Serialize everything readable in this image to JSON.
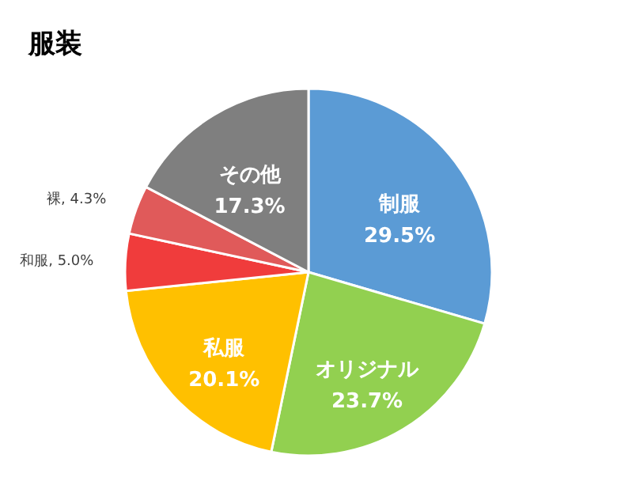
{
  "chart_data": {
    "type": "pie",
    "title": "服装",
    "categories": [
      "制服",
      "オリジナル",
      "私服",
      "和服",
      "裸",
      "その他"
    ],
    "values": [
      29.5,
      23.7,
      20.1,
      5.0,
      4.3,
      17.3
    ],
    "value_labels": [
      "29.5%",
      "23.7%",
      "20.1%",
      "5.0%",
      "4.3%",
      "17.3%"
    ],
    "colors": [
      "#5b9bd5",
      "#92d050",
      "#ffc000",
      "#f03c3c",
      "#e05a5a",
      "#7f7f7f"
    ]
  }
}
